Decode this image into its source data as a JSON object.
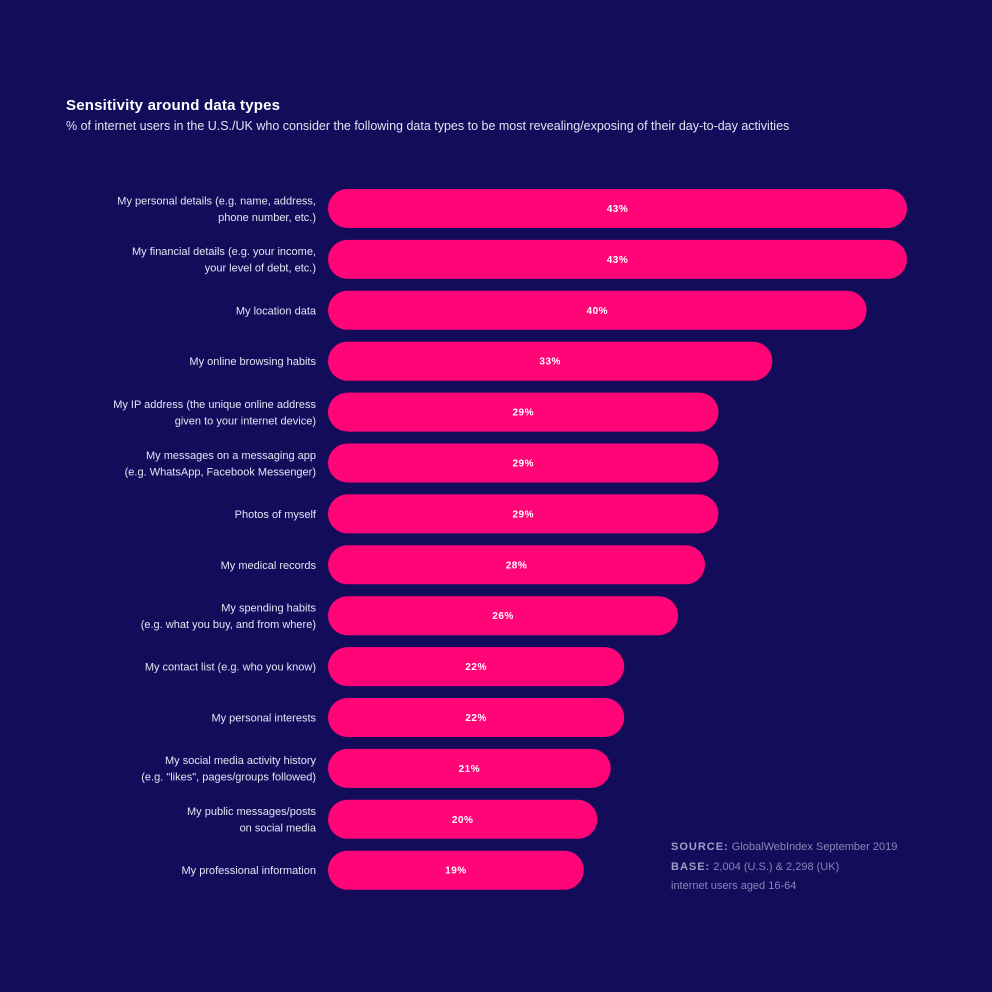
{
  "title": "Sensitivity around data types",
  "subtitle": "% of internet users in the U.S./UK who consider the following data types to be most revealing/exposing of their day-to-day activities",
  "colors": {
    "background": "#130c5b",
    "bar": "#ff0577"
  },
  "source": {
    "source_label": "SOURCE:",
    "source_text": "GlobalWebIndex September 2019",
    "base_label": "BASE:",
    "base_text": "2,004 (U.S.) & 2,298 (UK)",
    "base_text_2": "internet users aged 16-64"
  },
  "chart_data": {
    "type": "bar",
    "orientation": "horizontal",
    "categories": [
      [
        "My personal details (e.g. name, address,",
        "phone number, etc.)"
      ],
      [
        "My financial details (e.g. your income,",
        "your level of debt, etc.)"
      ],
      [
        "My location data"
      ],
      [
        "My online browsing habits"
      ],
      [
        "My IP address (the unique online address",
        "given to your internet device)"
      ],
      [
        "My messages on a messaging app",
        "(e.g. WhatsApp, Facebook Messenger)"
      ],
      [
        "Photos of myself"
      ],
      [
        "My medical records"
      ],
      [
        "My spending habits",
        "(e.g. what you buy, and from where)"
      ],
      [
        "My contact list (e.g. who you know)"
      ],
      [
        "My personal interests"
      ],
      [
        "My social media activity history",
        "(e.g. \"likes\", pages/groups followed)"
      ],
      [
        "My public messages/posts",
        "on social media"
      ],
      [
        "My professional information"
      ]
    ],
    "values": [
      43,
      43,
      40,
      33,
      29,
      29,
      29,
      28,
      26,
      22,
      22,
      21,
      20,
      19
    ],
    "value_labels": [
      "43%",
      "43%",
      "40%",
      "33%",
      "29%",
      "29%",
      "29%",
      "28%",
      "26%",
      "22%",
      "22%",
      "21%",
      "20%",
      "19%"
    ],
    "xlim": [
      0,
      43
    ],
    "grid": false,
    "legend": "none"
  }
}
